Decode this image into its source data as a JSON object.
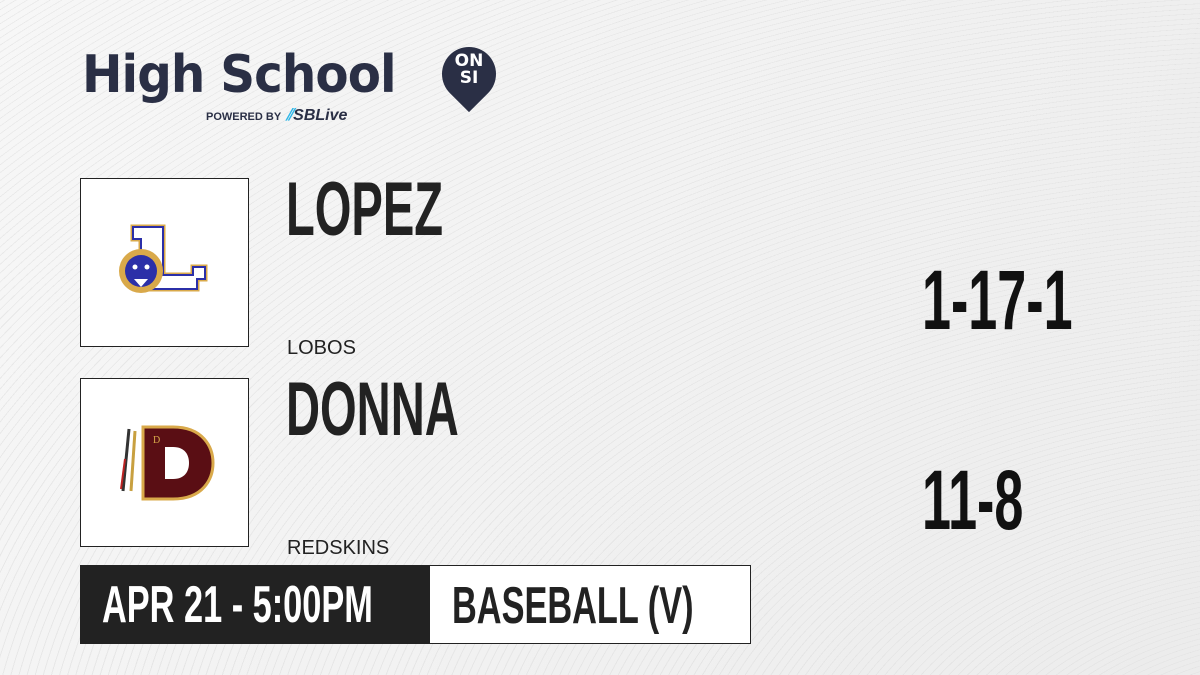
{
  "brand": {
    "title": "High School",
    "badge_line1": "ON",
    "badge_line2": "SI",
    "powered_by": "POWERED BY",
    "partner": "SBLive"
  },
  "teams": [
    {
      "name": "LOPEZ",
      "mascot": "LOBOS",
      "record": "1-17-1",
      "logo_letter": "L"
    },
    {
      "name": "DONNA",
      "mascot": "REDSKINS",
      "record": "11-8",
      "logo_letter": "D"
    }
  ],
  "game": {
    "datetime": "APR 21 - 5:00PM",
    "sport": "BASEBALL (V)"
  },
  "colors": {
    "brand": "#2a2f45",
    "accent": "#2fb7e8",
    "lopez_blue": "#2b2fa8",
    "lopez_gold": "#d9a94a",
    "donna_maroon": "#5a0e14"
  }
}
